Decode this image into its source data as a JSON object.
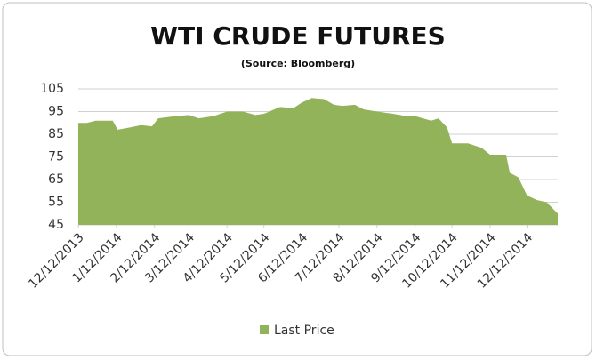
{
  "chart_data": {
    "type": "area",
    "title": "WTI CRUDE FUTURES",
    "subtitle": "(Source: Bloomberg)",
    "x": [
      "2013-12-12",
      "2013-12-19",
      "2013-12-26",
      "2014-01-09",
      "2014-01-13",
      "2014-01-23",
      "2014-02-01",
      "2014-02-10",
      "2014-02-15",
      "2014-03-01",
      "2014-03-12",
      "2014-03-20",
      "2014-04-01",
      "2014-04-12",
      "2014-04-25",
      "2014-05-05",
      "2014-05-12",
      "2014-05-25",
      "2014-06-05",
      "2014-06-12",
      "2014-06-20",
      "2014-06-30",
      "2014-07-08",
      "2014-07-15",
      "2014-07-25",
      "2014-08-01",
      "2014-08-12",
      "2014-08-25",
      "2014-09-05",
      "2014-09-12",
      "2014-09-25",
      "2014-10-01",
      "2014-10-08",
      "2014-10-12",
      "2014-10-25",
      "2014-11-05",
      "2014-11-12",
      "2014-11-25",
      "2014-11-28",
      "2014-12-05",
      "2014-12-12",
      "2014-12-20",
      "2014-12-28",
      "2015-01-06"
    ],
    "series": [
      {
        "name": "Last Price",
        "color": "#92b35a",
        "values": [
          90,
          90,
          91,
          91,
          87,
          88,
          89,
          88.5,
          92,
          93,
          93.5,
          92,
          93,
          95,
          95,
          93.5,
          94,
          97,
          96.5,
          99,
          101,
          100.5,
          98,
          97.5,
          98,
          96,
          95,
          94,
          93,
          93,
          91,
          92,
          88,
          81,
          81,
          79,
          76,
          76,
          68,
          66,
          58,
          56,
          55,
          50
        ]
      }
    ],
    "xlim": [
      "2013-12-12",
      "2015-01-06"
    ],
    "xticks": [
      {
        "value": "2013-12-12",
        "label": "12/12/2013"
      },
      {
        "value": "2014-01-12",
        "label": "1/12/2014"
      },
      {
        "value": "2014-02-12",
        "label": "2/12/2014"
      },
      {
        "value": "2014-03-12",
        "label": "3/12/2014"
      },
      {
        "value": "2014-04-12",
        "label": "4/12/2014"
      },
      {
        "value": "2014-05-12",
        "label": "5/12/2014"
      },
      {
        "value": "2014-06-12",
        "label": "6/12/2014"
      },
      {
        "value": "2014-07-12",
        "label": "7/12/2014"
      },
      {
        "value": "2014-08-12",
        "label": "8/12/2014"
      },
      {
        "value": "2014-09-12",
        "label": "9/12/2014"
      },
      {
        "value": "2014-10-12",
        "label": "10/12/2014"
      },
      {
        "value": "2014-11-12",
        "label": "11/12/2014"
      },
      {
        "value": "2014-12-12",
        "label": "12/12/2014"
      }
    ],
    "ylim": [
      45,
      105
    ],
    "yticks": [
      45,
      55,
      65,
      75,
      85,
      95,
      105
    ],
    "grid": true,
    "legend": "bottom"
  }
}
